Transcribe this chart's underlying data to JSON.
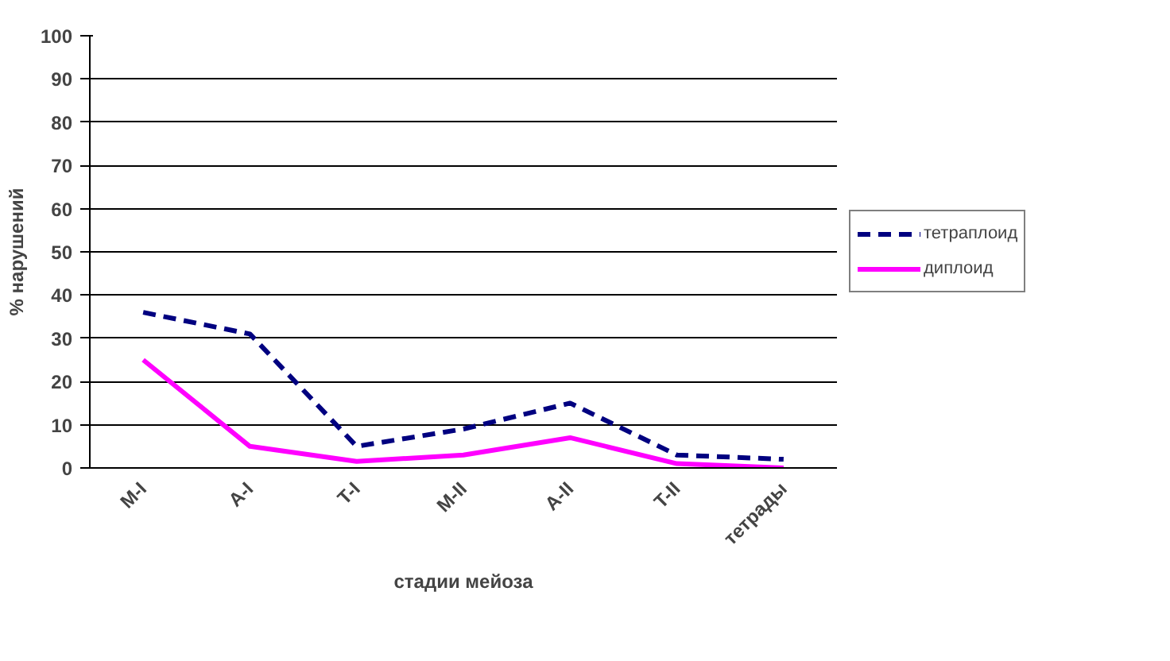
{
  "chart_data": {
    "type": "line",
    "xlabel": "стадии мейоза",
    "ylabel": "% нарушений",
    "categories": [
      "M-I",
      "A-I",
      "T-I",
      "M-II",
      "A-II",
      "T-II",
      "тетрады"
    ],
    "series": [
      {
        "name": "тетраплоид",
        "color": "#000080",
        "line_style": "dashed",
        "values": [
          36,
          31,
          5,
          9,
          15,
          3,
          2
        ]
      },
      {
        "name": "диплоид",
        "color": "#ff00ff",
        "line_style": "solid",
        "values": [
          25,
          5,
          1.5,
          3,
          7,
          1,
          0
        ]
      }
    ],
    "ylim": [
      0,
      100
    ],
    "yticks": [
      0,
      10,
      20,
      30,
      40,
      50,
      60,
      70,
      80,
      90,
      100
    ],
    "grid": "y",
    "legend": "right",
    "marker": "none"
  }
}
